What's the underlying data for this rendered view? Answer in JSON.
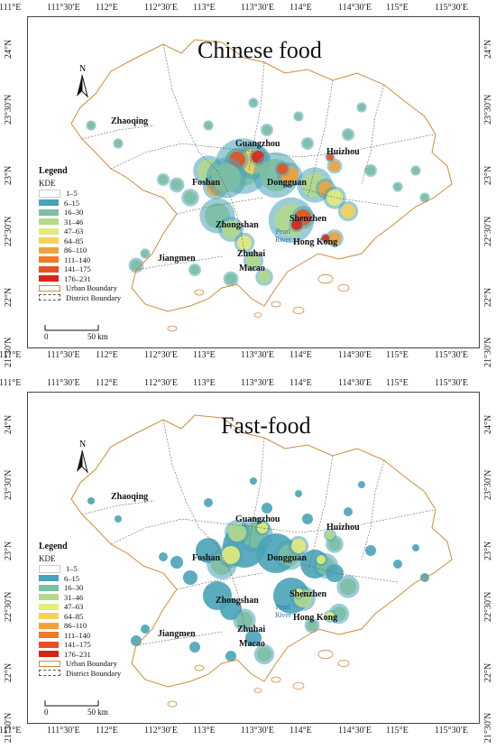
{
  "maps": [
    {
      "title": "Chinese food",
      "variant": "chinese"
    },
    {
      "title": "Fast-food",
      "variant": "fast"
    }
  ],
  "x_ticks": [
    "111°E",
    "111°30′E",
    "112°E",
    "112°30′E",
    "113°E",
    "113°30′E",
    "114°E",
    "114°30′E",
    "115°E",
    "115°30′E"
  ],
  "y_ticks": [
    "24°N",
    "23°30′N",
    "23°N",
    "22°30′N",
    "22°N",
    "21°30′N"
  ],
  "cities": {
    "zhaoqing": "Zhaoqing",
    "guangzhou": "Guangzhou",
    "huizhou": "Huizhou",
    "foshan": "Foshan",
    "dongguan": "Dongguan",
    "zhongshan": "Zhongshan",
    "shenzhen": "Shenzhen",
    "jiangmen": "Jiangmen",
    "zhuhai": "Zhuhai",
    "hongkong": "Hong Kong",
    "macao": "Macao",
    "pearl_river_1": "Pearl",
    "pearl_river_2": "River"
  },
  "north_label": "N",
  "legend": {
    "title": "Legend",
    "subtitle": "KDE",
    "classes": [
      {
        "label": "1–5",
        "color": "#ffffff"
      },
      {
        "label": "6–15",
        "color": "#4aa3b8"
      },
      {
        "label": "16–30",
        "color": "#7dbfa3"
      },
      {
        "label": "31–46",
        "color": "#b3d98c"
      },
      {
        "label": "47–63",
        "color": "#e3ec7a"
      },
      {
        "label": "64–85",
        "color": "#f5d35a"
      },
      {
        "label": "86–110",
        "color": "#f3a23a"
      },
      {
        "label": "111–140",
        "color": "#ee7a2a"
      },
      {
        "label": "141–175",
        "color": "#e5521f"
      },
      {
        "label": "176–231",
        "color": "#d92318"
      }
    ],
    "urban_boundary": "Urban Boundary",
    "district_boundary": "District Boundary"
  },
  "scale": {
    "zero": "0",
    "end": "50 km"
  }
}
